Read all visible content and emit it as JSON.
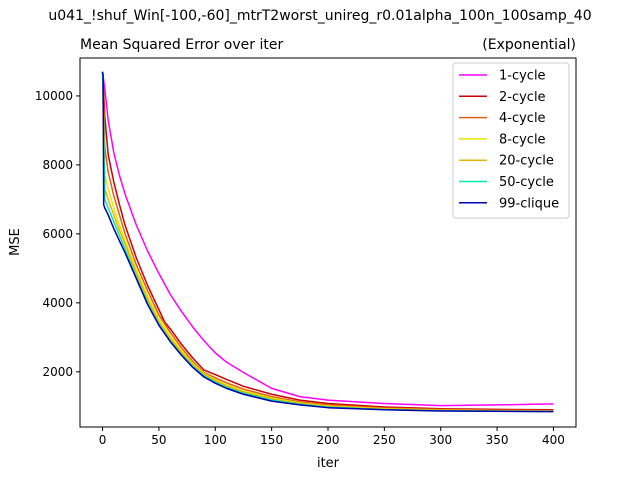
{
  "chart_data": {
    "type": "line",
    "suptitle": "u041_!shuf_Win[-100,-60]_mtrT2worst_unireg_r0.01alpha_100n_100samp_40",
    "title": "Mean Squared Error over iter",
    "title_right": "(Exponential)",
    "xlabel": "iter",
    "ylabel": "MSE",
    "xlim": [
      -20,
      420
    ],
    "ylim": [
      400,
      11100
    ],
    "xticks": [
      0,
      50,
      100,
      150,
      200,
      250,
      300,
      350,
      400
    ],
    "yticks": [
      2000,
      4000,
      6000,
      8000,
      10000
    ],
    "legend_position": "top-right",
    "grid": false,
    "series": [
      {
        "name": "1-cycle",
        "color": "#ff00ff",
        "x": [
          0,
          2,
          5,
          10,
          15,
          20,
          30,
          40,
          50,
          60,
          70,
          80,
          90,
          100,
          110,
          125,
          150,
          175,
          200,
          250,
          300,
          350,
          400
        ],
        "y": [
          10700,
          10200,
          9300,
          8350,
          7700,
          7150,
          6250,
          5500,
          4850,
          4250,
          3750,
          3300,
          2900,
          2550,
          2280,
          1980,
          1520,
          1280,
          1180,
          1080,
          1020,
          1040,
          1070
        ]
      },
      {
        "name": "2-cycle",
        "color": "#cc0000",
        "x": [
          0,
          2,
          5,
          10,
          15,
          20,
          30,
          40,
          50,
          55,
          60,
          70,
          80,
          90,
          100,
          110,
          125,
          150,
          175,
          200,
          250,
          300,
          350,
          400
        ],
        "y": [
          10700,
          9400,
          8300,
          7500,
          6850,
          6250,
          5300,
          4500,
          3800,
          3450,
          3250,
          2800,
          2400,
          2050,
          1920,
          1780,
          1580,
          1350,
          1180,
          1080,
          980,
          930,
          910,
          900
        ]
      },
      {
        "name": "4-cycle",
        "color": "#e06010",
        "x": [
          0,
          2,
          5,
          10,
          15,
          20,
          30,
          40,
          50,
          60,
          70,
          80,
          90,
          100,
          110,
          125,
          150,
          175,
          200,
          250,
          300,
          350,
          400
        ],
        "y": [
          10700,
          8500,
          7800,
          7100,
          6550,
          6000,
          5100,
          4350,
          3650,
          3150,
          2700,
          2300,
          1980,
          1830,
          1680,
          1500,
          1280,
          1130,
          1040,
          950,
          910,
          890,
          880
        ]
      },
      {
        "name": "8-cycle",
        "color": "#e6e600",
        "x": [
          0,
          2,
          5,
          10,
          15,
          20,
          30,
          40,
          50,
          60,
          70,
          80,
          90,
          100,
          110,
          125,
          150,
          175,
          200,
          250,
          300,
          350,
          400
        ],
        "y": [
          10700,
          7700,
          7300,
          6750,
          6250,
          5800,
          4950,
          4200,
          3550,
          3050,
          2620,
          2250,
          1950,
          1780,
          1620,
          1450,
          1240,
          1100,
          1010,
          930,
          890,
          870,
          860
        ]
      },
      {
        "name": "20-cycle",
        "color": "#e6b400",
        "x": [
          0,
          2,
          5,
          10,
          15,
          20,
          30,
          40,
          50,
          60,
          70,
          80,
          90,
          100,
          110,
          125,
          150,
          175,
          200,
          250,
          300,
          350,
          400
        ],
        "y": [
          10700,
          7300,
          7000,
          6550,
          6100,
          5700,
          4850,
          4100,
          3450,
          2970,
          2560,
          2200,
          1920,
          1750,
          1590,
          1420,
          1210,
          1080,
          990,
          910,
          880,
          865,
          855
        ]
      },
      {
        "name": "50-cycle",
        "color": "#00e6b4",
        "x": [
          0,
          2,
          5,
          10,
          15,
          20,
          30,
          40,
          50,
          60,
          70,
          80,
          90,
          100,
          110,
          125,
          150,
          175,
          200,
          250,
          300,
          350,
          400
        ],
        "y": [
          10700,
          7000,
          6750,
          6350,
          5950,
          5550,
          4750,
          4000,
          3380,
          2900,
          2500,
          2160,
          1880,
          1700,
          1550,
          1380,
          1180,
          1060,
          975,
          905,
          870,
          860,
          850
        ]
      },
      {
        "name": "99-clique",
        "color": "#0000aa",
        "x": [
          0,
          0.5,
          1,
          2,
          5,
          10,
          15,
          20,
          30,
          40,
          50,
          60,
          70,
          80,
          90,
          100,
          110,
          125,
          150,
          175,
          200,
          250,
          300,
          350,
          400
        ],
        "y": [
          10700,
          10600,
          6850,
          6750,
          6550,
          6150,
          5800,
          5450,
          4700,
          3950,
          3350,
          2880,
          2480,
          2130,
          1850,
          1670,
          1520,
          1350,
          1150,
          1040,
          960,
          900,
          865,
          855,
          845
        ]
      }
    ]
  }
}
